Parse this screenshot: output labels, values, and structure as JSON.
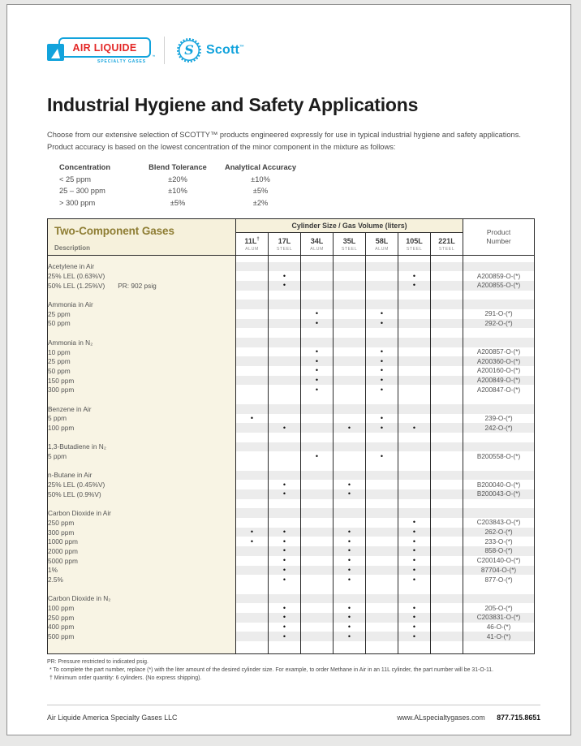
{
  "brand": {
    "air_liquide": "AIR LIQUIDE",
    "air_liquide_tm": "™",
    "air_liquide_sub": "SPECIALTY GASES",
    "scott_initial": "S",
    "scott": "Scott",
    "scott_tm": "™"
  },
  "colors": {
    "brand_blue": "#12a3dc",
    "brand_red": "#e32726",
    "table_cream": "#f6f1dc",
    "table_olive": "#8e7d33",
    "stripe_gray": "#ececec"
  },
  "title": "Industrial Hygiene and Safety Applications",
  "intro_line1": "Choose from our extensive selection of SCOTTY™ products engineered expressly for use in typical industrial hygiene and safety applications.",
  "intro_line2": "Product accuracy is based on the lowest concentration of the minor component in the mixture as follows:",
  "accuracy_table": {
    "headers": [
      "Concentration",
      "Blend Tolerance",
      "Analytical Accuracy"
    ],
    "rows": [
      [
        "< 25 ppm",
        "±20%",
        "±10%"
      ],
      [
        "25 – 300 ppm",
        "±10%",
        "±5%"
      ],
      [
        "> 300 ppm",
        "±5%",
        "±2%"
      ]
    ]
  },
  "main_table": {
    "title": "Two-Component Gases",
    "subtitle": "Description",
    "span_header": "Cylinder Size / Gas Volume (liters)",
    "product_header_line1": "Product",
    "product_header_line2": "Number",
    "columns": [
      {
        "size": "11L",
        "mark": "†",
        "material": "ALUM"
      },
      {
        "size": "17L",
        "mark": "",
        "material": "STEEL"
      },
      {
        "size": "34L",
        "mark": "",
        "material": "ALUM"
      },
      {
        "size": "35L",
        "mark": "",
        "material": "STEEL"
      },
      {
        "size": "58L",
        "mark": "",
        "material": "ALUM"
      },
      {
        "size": "105L",
        "mark": "",
        "material": "STEEL"
      },
      {
        "size": "221L",
        "mark": "",
        "material": "STEEL"
      }
    ],
    "groups": [
      {
        "name": "Acetylene in Air",
        "rows": [
          {
            "label": "25% LEL (0.63%V)",
            "dots": [
              1,
              5
            ],
            "product": "A200859-O-(*)"
          },
          {
            "label": "50% LEL (1.25%V)",
            "note": "PR: 902 psig",
            "dots": [
              1,
              5
            ],
            "product": "A200855-O-(*)"
          }
        ]
      },
      {
        "name": "Ammonia in Air",
        "rows": [
          {
            "label": "25 ppm",
            "dots": [
              2,
              4
            ],
            "product": "291-O-(*)"
          },
          {
            "label": "50 ppm",
            "dots": [
              2,
              4
            ],
            "product": "292-O-(*)"
          }
        ]
      },
      {
        "name": "Ammonia in N₂",
        "rows": [
          {
            "label": "10 ppm",
            "dots": [
              2,
              4
            ],
            "product": "A200857-O-(*)"
          },
          {
            "label": "25 ppm",
            "dots": [
              2,
              4
            ],
            "product": "A200360-O-(*)"
          },
          {
            "label": "50 ppm",
            "dots": [
              2,
              4
            ],
            "product": "A200160-O-(*)"
          },
          {
            "label": "150 ppm",
            "dots": [
              2,
              4
            ],
            "product": "A200849-O-(*)"
          },
          {
            "label": "300 ppm",
            "dots": [
              2,
              4
            ],
            "product": "A200847-O-(*)"
          }
        ]
      },
      {
        "name": "Benzene in Air",
        "rows": [
          {
            "label": "5 ppm",
            "dots": [
              0,
              4
            ],
            "product": "239-O-(*)"
          },
          {
            "label": "100 ppm",
            "dots": [
              1,
              3,
              4,
              5
            ],
            "product": "242-O-(*)"
          }
        ]
      },
      {
        "name": "1,3-Butadiene in N₂",
        "rows": [
          {
            "label": "5 ppm",
            "dots": [
              2,
              4
            ],
            "product": "B200558-O-(*)"
          }
        ]
      },
      {
        "name": "n-Butane in Air",
        "rows": [
          {
            "label": "25% LEL (0.45%V)",
            "dots": [
              1,
              3
            ],
            "product": "B200040-O-(*)"
          },
          {
            "label": "50% LEL (0.9%V)",
            "dots": [
              1,
              3
            ],
            "product": "B200043-O-(*)"
          }
        ]
      },
      {
        "name": "Carbon Dioxide in Air",
        "rows": [
          {
            "label": "250 ppm",
            "dots": [
              5
            ],
            "product": "C203843-O-(*)"
          },
          {
            "label": "300 ppm",
            "dots": [
              0,
              1,
              3,
              5
            ],
            "product": "262-O-(*)"
          },
          {
            "label": "1000 ppm",
            "dots": [
              0,
              1,
              3,
              5
            ],
            "product": "233-O-(*)"
          },
          {
            "label": "2000 ppm",
            "dots": [
              1,
              3,
              5
            ],
            "product": "858-O-(*)"
          },
          {
            "label": "5000 ppm",
            "dots": [
              1,
              3,
              5
            ],
            "product": "C200140-O-(*)"
          },
          {
            "label": "1%",
            "dots": [
              1,
              3,
              5
            ],
            "product": "87704-O-(*)"
          },
          {
            "label": "2.5%",
            "dots": [
              1,
              3,
              5
            ],
            "product": "877-O-(*)"
          }
        ]
      },
      {
        "name": "Carbon Dioxide in N₂",
        "rows": [
          {
            "label": "100 ppm",
            "dots": [
              1,
              3,
              5
            ],
            "product": "205-O-(*)"
          },
          {
            "label": "250 ppm",
            "dots": [
              1,
              3,
              5
            ],
            "product": "C203831-O-(*)"
          },
          {
            "label": "400 ppm",
            "dots": [
              1,
              3,
              5
            ],
            "product": "46-O-(*)"
          },
          {
            "label": "500 ppm",
            "dots": [
              1,
              3,
              5
            ],
            "product": "41-O-(*)"
          }
        ]
      }
    ]
  },
  "footnotes": [
    "PR: Pressure restricted to indicated psig.",
    "* To complete the part number, replace (*) with the liter amount of the desired cylinder size. For example, to order Methane in Air in an 11L cylinder, the part number will be 31-O-11.",
    "† Minimum order quantity: 6 cylinders. (No express shipping)."
  ],
  "footer": {
    "company": "Air Liquide America Specialty Gases LLC",
    "website": "www.ALspecialtygases.com",
    "phone": "877.715.8651"
  }
}
